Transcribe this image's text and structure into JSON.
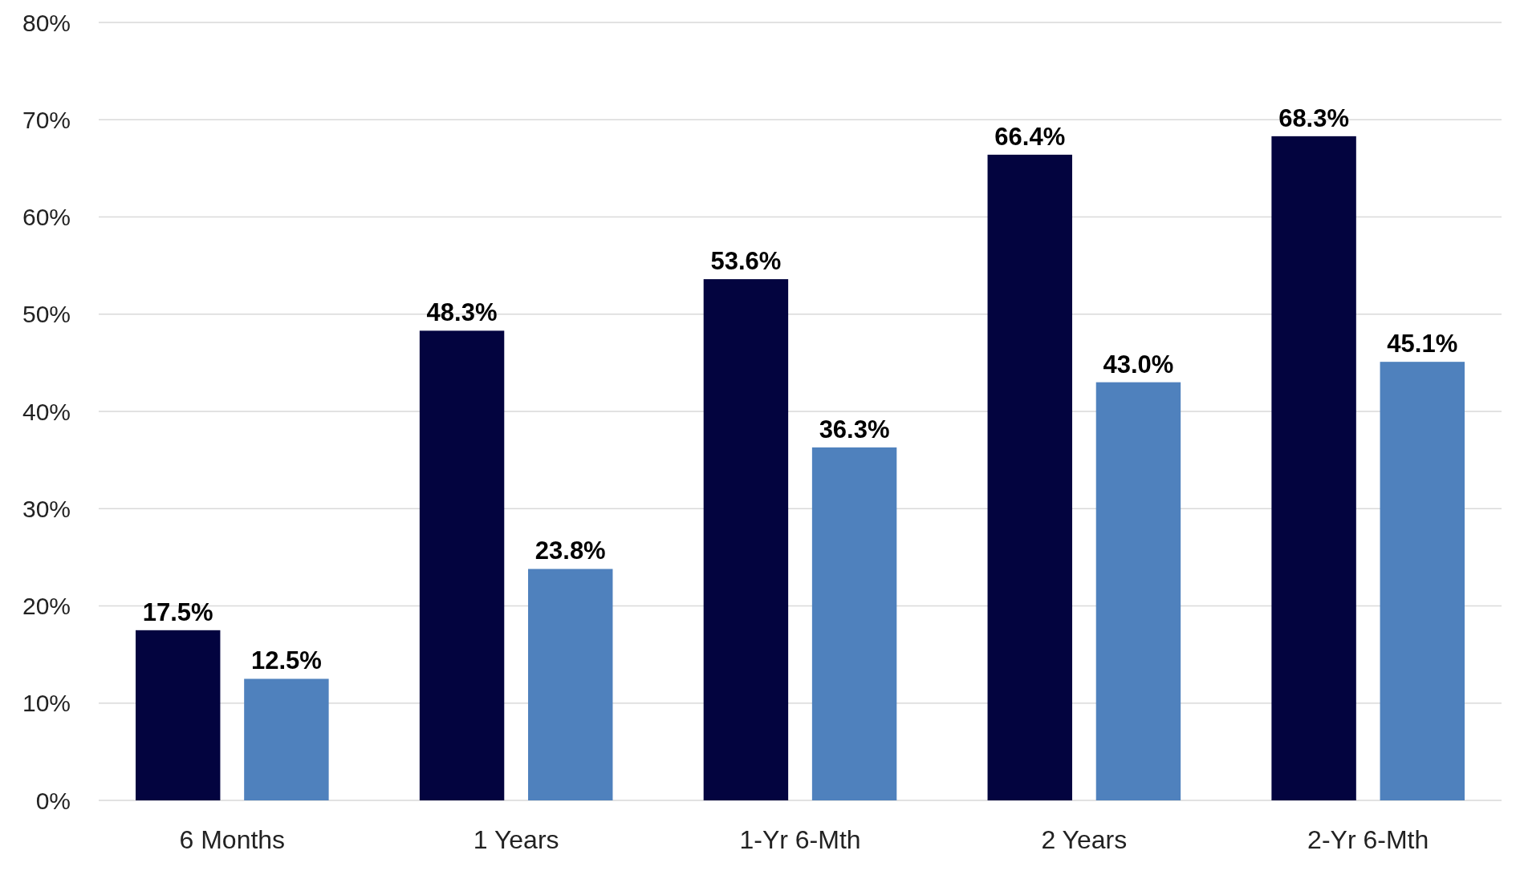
{
  "chart_data": {
    "type": "bar",
    "categories": [
      "6 Months",
      "1 Years",
      "1-Yr 6-Mth",
      "2 Years",
      "2-Yr 6-Mth"
    ],
    "series": [
      {
        "color": "#03043f",
        "values": [
          17.5,
          48.3,
          53.6,
          66.4,
          68.3
        ],
        "value_labels": [
          "17.5%",
          "48.3%",
          "53.6%",
          "66.4%",
          "68.3%"
        ]
      },
      {
        "color": "#4f81bd",
        "values": [
          12.5,
          23.8,
          36.3,
          43.0,
          45.1
        ],
        "value_labels": [
          "12.5%",
          "23.8%",
          "36.3%",
          "43.0%",
          "45.1%"
        ]
      }
    ],
    "ylim": [
      0,
      80
    ],
    "yticks": [
      {
        "value": 0,
        "label": "0%"
      },
      {
        "value": 10,
        "label": "10%"
      },
      {
        "value": 20,
        "label": "20%"
      },
      {
        "value": 30,
        "label": "30%"
      },
      {
        "value": 40,
        "label": "40%"
      },
      {
        "value": 50,
        "label": "50%"
      },
      {
        "value": 60,
        "label": "60%"
      },
      {
        "value": 70,
        "label": "70%"
      },
      {
        "value": 80,
        "label": "80%"
      }
    ],
    "grid": "y"
  }
}
